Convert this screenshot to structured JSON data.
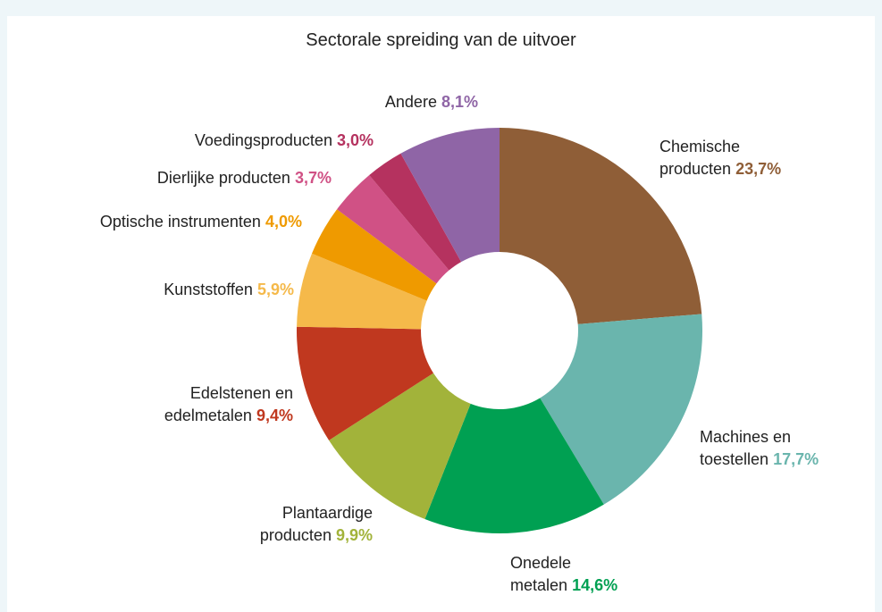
{
  "chart_data": {
    "type": "donut",
    "title": "Sectorale spreiding van de uitvoer",
    "categories": [
      "Chemische producten",
      "Machines en toestellen",
      "Onedele metalen",
      "Plantaardige producten",
      "Edelstenen en edelmetalen",
      "Kunststoffen",
      "Optische instrumenten",
      "Dierlijke producten",
      "Voedingsproducten",
      "Andere"
    ],
    "values": [
      23.7,
      17.7,
      14.6,
      9.9,
      9.4,
      5.9,
      4.0,
      3.7,
      3.0,
      8.1
    ],
    "value_labels": [
      "23,7%",
      "17,7%",
      "14,6%",
      "9,9%",
      "9,4%",
      "5,9%",
      "4,0%",
      "3,7%",
      "3,0%",
      "8,1%"
    ],
    "colors": [
      "#8f5e37",
      "#6ab5ad",
      "#00a052",
      "#a2b33a",
      "#c0381f",
      "#f5b94a",
      "#ef9a00",
      "#d05185",
      "#b5325f",
      "#8f65a6"
    ]
  }
}
